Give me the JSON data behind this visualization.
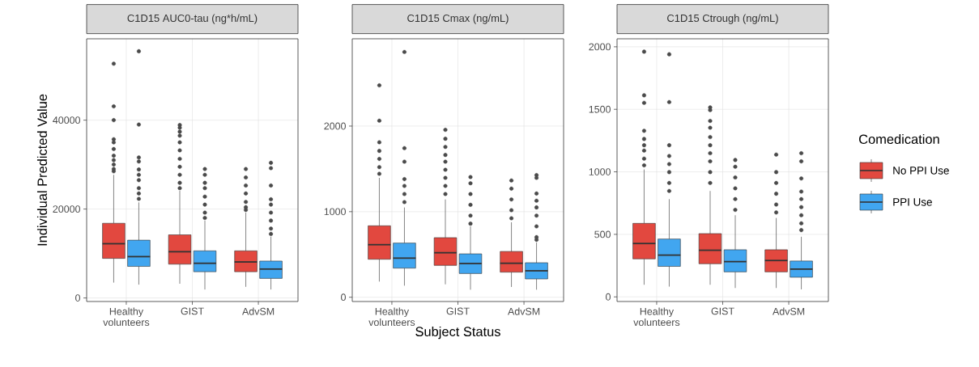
{
  "chart_data": [
    {
      "type": "box",
      "title": "C1D15 AUC0-tau (ng*h/mL)",
      "ylabel": "Individual Predicted Value",
      "categories": [
        "Healthy volunteers",
        "GIST",
        "AdvSM"
      ],
      "ylim": [
        -800,
        58300
      ],
      "yticks": [
        0,
        20000,
        40000
      ],
      "grid": true,
      "series": [
        {
          "color": "#e2483f",
          "boxes": [
            {
              "low": 3450,
              "q1": 8900,
              "median": 12200,
              "q3": 16800,
              "high": 27700,
              "outliers": [
                52700,
                43100,
                40000,
                35700,
                35000,
                33500,
                32000,
                31000,
                30000,
                29000,
                28500
              ]
            },
            {
              "low": 3200,
              "q1": 7600,
              "median": 10400,
              "q3": 14200,
              "high": 24100,
              "outliers": [
                38900,
                38300,
                37400,
                36500,
                35000,
                33200,
                31300,
                29500,
                27700,
                25900,
                24700
              ]
            },
            {
              "low": 2500,
              "q1": 5900,
              "median": 8100,
              "q3": 10600,
              "high": 19200,
              "outliers": [
                29000,
                27100,
                25300,
                23500,
                21600,
                20400,
                19800
              ]
            }
          ]
        },
        {
          "color": "#41a6f0",
          "boxes": [
            {
              "low": 3000,
              "q1": 7100,
              "median": 9300,
              "q3": 13000,
              "high": 21500,
              "outliers": [
                55500,
                39000,
                31600,
                30700,
                28900,
                27700,
                26500,
                24700,
                23500,
                22300
              ]
            },
            {
              "low": 1900,
              "q1": 5900,
              "median": 7800,
              "q3": 10600,
              "high": 17400,
              "outliers": [
                29000,
                27700,
                25900,
                24700,
                22800,
                21000,
                19200,
                18000
              ]
            },
            {
              "low": 1900,
              "q1": 4400,
              "median": 6500,
              "q3": 8300,
              "high": 13800,
              "outliers": [
                30400,
                29200,
                25300,
                22200,
                21000,
                19200,
                17400,
                15600,
                14400
              ]
            }
          ]
        }
      ]
    },
    {
      "type": "box",
      "title": "C1D15 Cmax (ng/mL)",
      "xlabel": "Subject Status",
      "categories": [
        "Healthy volunteers",
        "GIST",
        "AdvSM"
      ],
      "ylim": [
        -50,
        3020
      ],
      "yticks": [
        0,
        1000,
        2000
      ],
      "grid": true,
      "series": [
        {
          "color": "#e2483f",
          "boxes": [
            {
              "low": 183,
              "q1": 444,
              "median": 614,
              "q3": 835,
              "high": 1395,
              "outliers": [
                2476,
                2063,
                1811,
                1710,
                1616,
                1521,
                1443
              ]
            },
            {
              "low": 151,
              "q1": 372,
              "median": 520,
              "q3": 696,
              "high": 1143,
              "outliers": [
                1956,
                1852,
                1757,
                1663,
                1584,
                1490,
                1395,
                1301,
                1206
              ]
            },
            {
              "low": 120,
              "q1": 293,
              "median": 397,
              "q3": 535,
              "high": 876,
              "outliers": [
                1364,
                1269,
                1143,
                1017,
                923
              ]
            }
          ]
        },
        {
          "color": "#41a6f0",
          "boxes": [
            {
              "low": 135,
              "q1": 340,
              "median": 457,
              "q3": 633,
              "high": 1049,
              "outliers": [
                2866,
                1742,
                1584,
                1380,
                1301,
                1206,
                1112
              ]
            },
            {
              "low": 88,
              "q1": 277,
              "median": 394,
              "q3": 507,
              "high": 828,
              "outliers": [
                1405,
                1332,
                1206,
                1080,
                954,
                860
              ]
            },
            {
              "low": 88,
              "q1": 214,
              "median": 309,
              "q3": 403,
              "high": 639,
              "outliers": [
                1427,
                1395,
                1212,
                1128,
                1049,
                954,
                828,
                702,
                671
              ]
            }
          ]
        }
      ]
    },
    {
      "type": "box",
      "title": "C1D15 Ctrough (ng/mL)",
      "legend_title": "Comedication",
      "legend": "right",
      "categories": [
        "Healthy volunteers",
        "GIST",
        "AdvSM"
      ],
      "ylim": [
        -37,
        2064
      ],
      "yticks": [
        0,
        500,
        1000,
        1500,
        2000
      ],
      "grid": true,
      "series": [
        {
          "name": "No PPI Use",
          "color": "#e2483f",
          "boxes": [
            {
              "low": 97,
              "q1": 304,
              "median": 427,
              "q3": 588,
              "high": 1019,
              "outliers": [
                1961,
                1612,
                1552,
                1328,
                1263,
                1213,
                1170,
                1106,
                1052
              ]
            },
            {
              "low": 97,
              "q1": 265,
              "median": 373,
              "q3": 506,
              "high": 847,
              "outliers": [
                1515,
                1494,
                1407,
                1353,
                1278,
                1213,
                1149,
                1084,
                998,
                911
              ]
            },
            {
              "low": 71,
              "q1": 200,
              "median": 291,
              "q3": 377,
              "high": 631,
              "outliers": [
                1138,
                998,
                911,
                825,
                739,
                675
              ]
            }
          ]
        },
        {
          "name": "PPI Use",
          "color": "#41a6f0",
          "boxes": [
            {
              "low": 82,
              "q1": 244,
              "median": 334,
              "q3": 463,
              "high": 782,
              "outliers": [
                1940,
                1558,
                1213,
                1127,
                1062,
                998,
                911,
                847
              ]
            },
            {
              "low": 71,
              "q1": 200,
              "median": 282,
              "q3": 377,
              "high": 653,
              "outliers": [
                1095,
                1041,
                955,
                868,
                782,
                696
              ]
            },
            {
              "low": 60,
              "q1": 157,
              "median": 222,
              "q3": 287,
              "high": 481,
              "outliers": [
                1149,
                1084,
                947,
                842,
                782,
                718,
                653,
                588,
                534
              ]
            }
          ]
        }
      ]
    }
  ]
}
